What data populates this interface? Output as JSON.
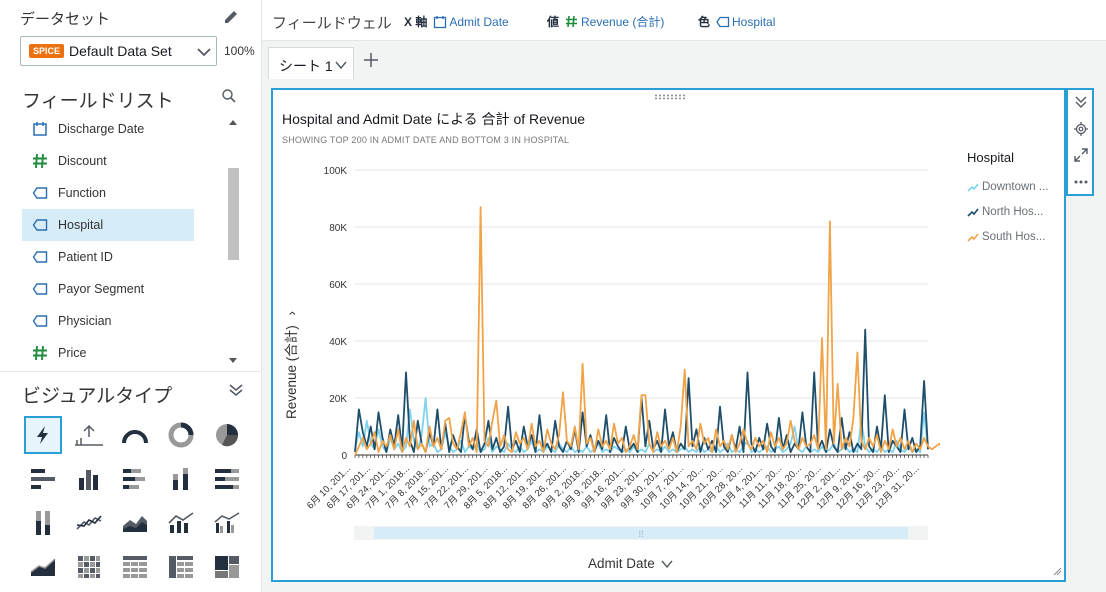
{
  "left_panel": {
    "dataset_heading": "データセット",
    "dataset": {
      "badge": "SPICE",
      "name": "Default Data Set",
      "percent": "100%"
    },
    "field_list_heading": "フィールドリスト",
    "fields": [
      {
        "label": "Discharge Date",
        "type": "date"
      },
      {
        "label": "Discount",
        "type": "measure"
      },
      {
        "label": "Function",
        "type": "dimension"
      },
      {
        "label": "Hospital",
        "type": "dimension",
        "selected": true
      },
      {
        "label": "Patient ID",
        "type": "dimension"
      },
      {
        "label": "Payor Segment",
        "type": "dimension"
      },
      {
        "label": "Physician",
        "type": "dimension"
      },
      {
        "label": "Price",
        "type": "measure"
      }
    ],
    "visual_types_heading": "ビジュアルタイプ"
  },
  "field_wells": {
    "title": "フィールドウェル",
    "x_axis": {
      "label": "X 軸",
      "value": "Admit Date"
    },
    "value": {
      "label": "値",
      "value": "Revenue (合計)"
    },
    "color": {
      "label": "色",
      "value": "Hospital"
    }
  },
  "sheets": [
    {
      "label": "シート 1"
    }
  ],
  "visual": {
    "title": "Hospital and Admit Date による 合計 of Revenue",
    "subtitle": "SHOWING TOP 200 IN ADMIT DATE AND BOTTOM 3 IN HOSPITAL",
    "legend_title": "Hospital",
    "legend": [
      {
        "label": "Downtown ...",
        "color": "#7fd3ee"
      },
      {
        "label": "North Hos...",
        "color": "#1f4e6b"
      },
      {
        "label": "South Hos...",
        "color": "#f0a347"
      }
    ],
    "x_axis_label": "Admit Date",
    "y_axis_label": "Revenue (合計)"
  },
  "chart_data": {
    "type": "line",
    "xlabel": "Admit Date",
    "ylabel": "Revenue (合計)",
    "ylim": [
      0,
      100000
    ],
    "y_ticks": [
      "0",
      "20K",
      "40K",
      "60K",
      "80K",
      "100K"
    ],
    "x_tick_labels": [
      "6月 10, 201...",
      "6月 17, 201...",
      "6月 24, 201...",
      "7月 1, 2018...",
      "7月 8, 2018...",
      "7月 15, 201...",
      "7月 22, 201...",
      "7月 29, 201...",
      "8月 5, 2018...",
      "8月 12, 201...",
      "8月 19, 201...",
      "8月 26, 201...",
      "9月 2, 2018...",
      "9月 9, 2018...",
      "9月 16, 201...",
      "9月 23, 201...",
      "9月 30, 201...",
      "10月 7, 201...",
      "10月 14, 20...",
      "10月 21, 20...",
      "10月 28, 20...",
      "11月 4, 201...",
      "11月 11, 20...",
      "11月 18, 20...",
      "11月 25, 20...",
      "12月 2, 201...",
      "12月 9, 201...",
      "12月 16, 20...",
      "12月 23, 20...",
      "12月 31, 20..."
    ],
    "series": [
      {
        "name": "Downtown ...",
        "color": "#7fd3ee",
        "values": [
          2000,
          8000,
          3000,
          12000,
          4000,
          2000,
          9000,
          3000,
          1000,
          6000,
          2000,
          4000,
          1000,
          3000,
          16000,
          5000,
          2000,
          7000,
          20000,
          3000,
          4000,
          1000,
          2000,
          8000,
          3000,
          1000,
          2000,
          5000,
          1000,
          3000,
          2000,
          4000,
          1000,
          2000,
          6000,
          1000,
          3000,
          2000,
          1000,
          4000,
          2000,
          1000,
          3000,
          1000,
          2000,
          5000,
          1000,
          2000,
          1000,
          3000,
          2000,
          1000,
          4000,
          2000,
          1000,
          3000,
          1000,
          2000,
          1000,
          3000,
          1000,
          2000,
          4000,
          1000,
          2000,
          1000,
          3000,
          2000,
          1000,
          2000,
          1000,
          3000,
          1000,
          2000,
          1000,
          4000,
          1000,
          2000,
          1000,
          3000,
          1000,
          2000,
          1000,
          2000,
          3000,
          1000,
          2000,
          1000,
          3000,
          1000,
          2000,
          1000,
          3000,
          1000,
          2000,
          4000,
          1000,
          2000,
          1000,
          3000,
          5000,
          1000,
          2000,
          1000,
          2000,
          3000,
          1000,
          2000,
          3000,
          1000,
          2000,
          4000,
          10000,
          2000,
          1000,
          3000,
          1000,
          2000,
          1000,
          3000,
          1000,
          2000,
          4000,
          1000,
          2000,
          3000,
          1000,
          2000,
          1000,
          12000,
          3000,
          1000,
          2000,
          1000,
          3000,
          1000,
          2000,
          1000,
          5000,
          2000,
          1000,
          3000,
          1000,
          2000,
          1000,
          15000,
          2000
        ]
      },
      {
        "name": "North Hos...",
        "color": "#1f4e6b",
        "values": [
          1000,
          16000,
          8000,
          3000,
          10000,
          2000,
          15000,
          6000,
          1000,
          9000,
          3000,
          14000,
          2000,
          29000,
          5000,
          1000,
          12000,
          4000,
          1000,
          8000,
          3000,
          16000,
          2000,
          11000,
          1000,
          7000,
          3000,
          1000,
          14000,
          5000,
          2000,
          9000,
          1000,
          4000,
          12000,
          2000,
          6000,
          1000,
          3000,
          17000,
          2000,
          5000,
          1000,
          10000,
          3000,
          7000,
          1000,
          14000,
          2000,
          4000,
          1000,
          12000,
          3000,
          1000,
          5000,
          2000,
          9000,
          1000,
          15000,
          3000,
          7000,
          1000,
          5000,
          2000,
          14000,
          1000,
          6000,
          3000,
          1000,
          10000,
          2000,
          4000,
          1000,
          20000,
          3000,
          12000,
          2000,
          5000,
          1000,
          16000,
          3000,
          8000,
          1000,
          4000,
          2000,
          27000,
          3000,
          9000,
          1000,
          6000,
          2000,
          5000,
          1000,
          17000,
          3000,
          1000,
          7000,
          2000,
          10000,
          1000,
          29000,
          4000,
          1000,
          6000,
          2000,
          11000,
          3000,
          1000,
          13000,
          2000,
          7000,
          1000,
          4000,
          2000,
          15000,
          3000,
          1000,
          29000,
          2000,
          5000,
          1000,
          9000,
          3000,
          1000,
          13000,
          2000,
          8000,
          1000,
          4000,
          2000,
          44000,
          3000,
          1000,
          10000,
          2000,
          21000,
          1000,
          5000,
          3000,
          1000,
          16000,
          2000,
          6000,
          1000,
          3000,
          26000,
          2000
        ]
      },
      {
        "name": "South Hos...",
        "color": "#f0a347",
        "values": [
          0,
          3000,
          6000,
          2000,
          4000,
          8000,
          1000,
          5000,
          3000,
          7000,
          2000,
          9000,
          1000,
          6000,
          3000,
          12000,
          2000,
          4000,
          1000,
          10000,
          3000,
          6000,
          2000,
          12000,
          13000,
          4000,
          2000,
          8000,
          15000,
          3000,
          6000,
          1000,
          87000,
          5000,
          3000,
          12000,
          19000,
          3000,
          7000,
          2000,
          1000,
          8000,
          4000,
          6000,
          2000,
          11000,
          3000,
          5000,
          1000,
          9000,
          4000,
          2000,
          7000,
          22000,
          5000,
          3000,
          10000,
          2000,
          32000,
          4000,
          6000,
          1000,
          9000,
          3000,
          5000,
          2000,
          11000,
          4000,
          6000,
          1000,
          3000,
          7000,
          2000,
          21000,
          21000,
          4000,
          1000,
          8000,
          3000,
          5000,
          2000,
          6000,
          1000,
          10000,
          30000,
          3000,
          5000,
          2000,
          11000,
          4000,
          6000,
          1000,
          9000,
          3000,
          5000,
          2000,
          7000,
          1000,
          4000,
          9000,
          4000,
          2000,
          6000,
          3000,
          5000,
          1000,
          8000,
          3000,
          6000,
          2000,
          4000,
          12000,
          5000,
          2000,
          6000,
          3000,
          4000,
          7000,
          2000,
          41000,
          2000,
          82000,
          4000,
          25000,
          2000,
          6000,
          3000,
          13000,
          36000,
          5000,
          2000,
          6000,
          3000,
          7000,
          1000,
          5000,
          2000,
          9000,
          3000,
          6000,
          2000,
          5000,
          1000,
          4000,
          2000,
          6000,
          3000,
          2000,
          3000,
          4000,
          2000
        ]
      }
    ]
  }
}
